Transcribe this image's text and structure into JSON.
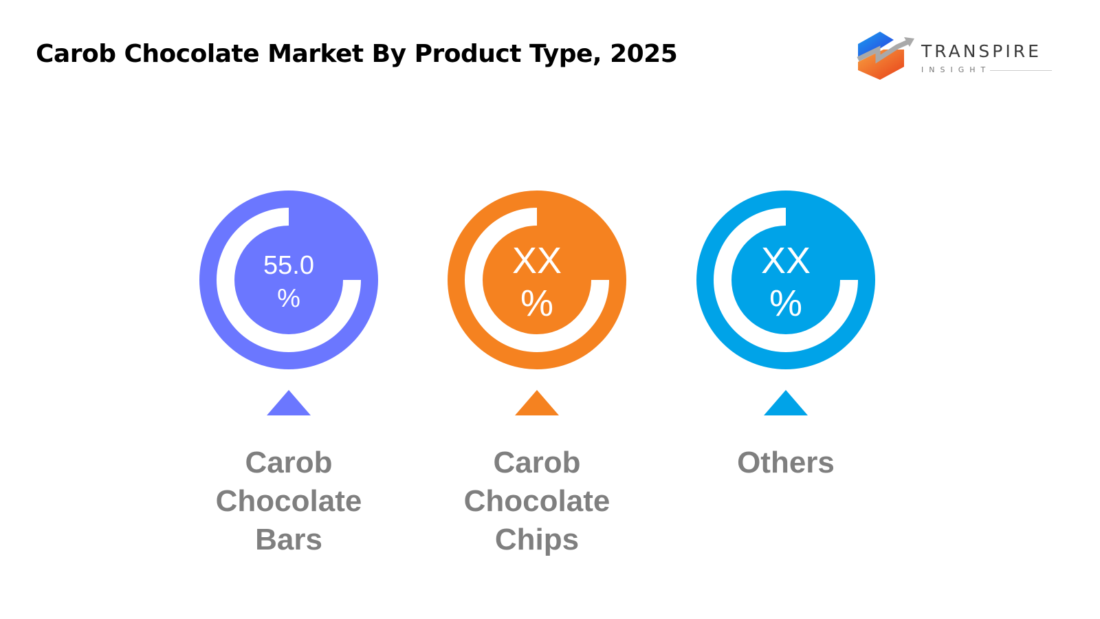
{
  "title": "Carob Chocolate Market By Product Type, 2025",
  "logo": {
    "name": "TRANSPIRE",
    "sub": "INSIGHT"
  },
  "chart_data": {
    "type": "pie",
    "title": "Carob Chocolate Market By Product Type, 2025",
    "categories": [
      "Carob Chocolate Bars",
      "Carob Chocolate Chips",
      "Others"
    ],
    "series": [
      {
        "label": "Carob Chocolate Bars",
        "value_text": "55.0",
        "unit": "%",
        "value": 55.0,
        "color": "#6B77FF"
      },
      {
        "label": "Carob Chocolate Chips",
        "value_text": "XX",
        "unit": "%",
        "value": null,
        "color": "#F58220"
      },
      {
        "label": "Others",
        "value_text": "XX",
        "unit": "%",
        "value": null,
        "color": "#00A3E8"
      }
    ]
  }
}
